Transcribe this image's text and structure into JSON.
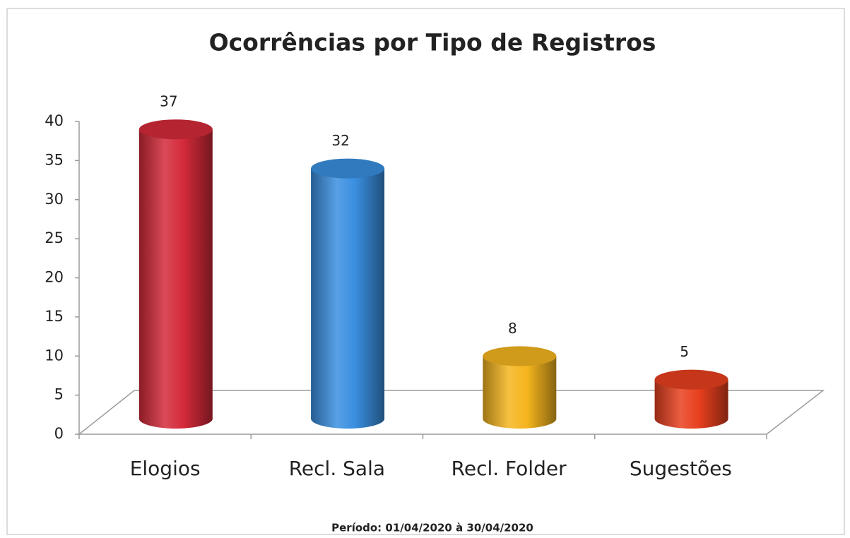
{
  "chart_data": {
    "type": "bar",
    "title": "Ocorrências por Tipo de Registros",
    "subtitle": "Período: 01/04/2020 à 30/04/2020",
    "categories": [
      "Elogios",
      "Recl. Sala",
      "Recl. Folder",
      "Sugestões"
    ],
    "values": [
      37,
      32,
      8,
      5
    ],
    "colors": [
      "#d42a3a",
      "#3a8fe0",
      "#f5b51e",
      "#e8401e"
    ],
    "ylim": [
      0,
      40
    ],
    "yticks": [
      0,
      5,
      10,
      15,
      20,
      25,
      30,
      35,
      40
    ],
    "grid": false
  }
}
